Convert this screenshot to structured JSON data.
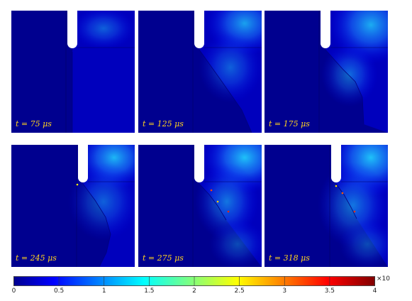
{
  "panels": [
    {
      "label": "t = 75 μs",
      "stage": 0
    },
    {
      "label": "t = 125 μs",
      "stage": 1
    },
    {
      "label": "t = 175 μs",
      "stage": 2
    },
    {
      "label": "t = 245 μs",
      "stage": 3
    },
    {
      "label": "t = 275 μs",
      "stage": 4
    },
    {
      "label": "t = 318 μs",
      "stage": 5
    }
  ],
  "colorbar": {
    "min": 0,
    "max": 4,
    "ticks": [
      "0",
      "0.5",
      "1",
      "1.5",
      "2",
      "2.5",
      "3",
      "3.5",
      "4"
    ],
    "multiplier": "×10",
    "colormap": "jet",
    "colors": {
      "deep_blue": "#00008f",
      "blue": "#0000ff",
      "cyan": "#00ffff",
      "yellow": "#ffff00",
      "red": "#ff0000",
      "dark_red": "#800000"
    }
  }
}
